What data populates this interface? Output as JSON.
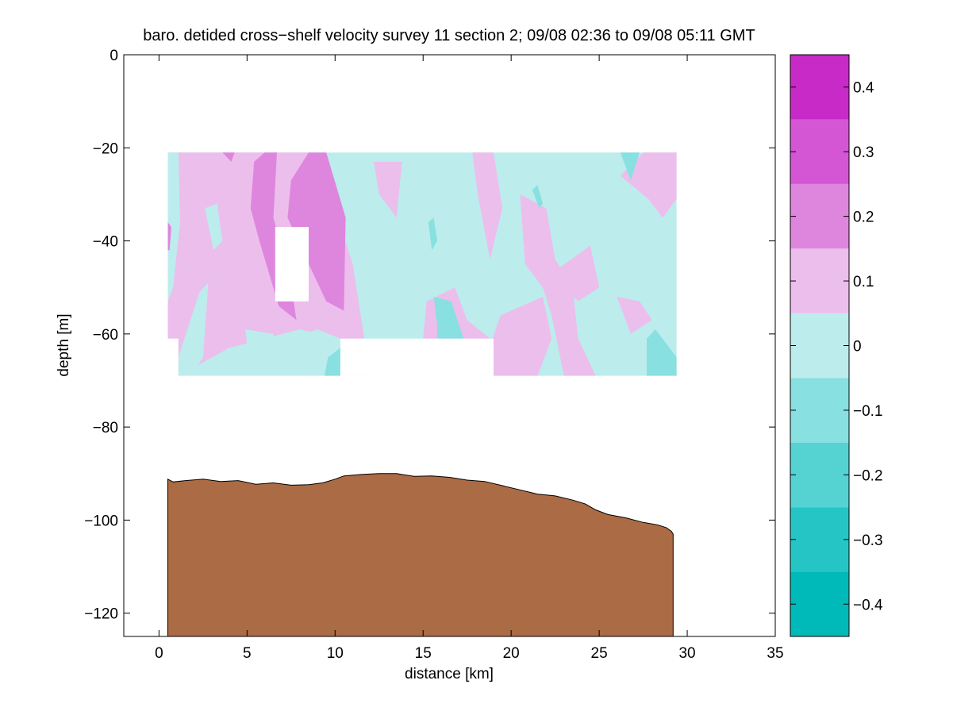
{
  "chart_data": {
    "type": "heatmap",
    "title": "baro. detided cross−shelf velocity survey 11 section 2; 09/08 02:36 to 09/08 05:11 GMT",
    "xlabel": "distance [km]",
    "ylabel": "depth [m]",
    "xlim": [
      -2,
      35
    ],
    "ylim": [
      -125,
      0
    ],
    "x_ticks": [
      0,
      5,
      10,
      15,
      20,
      25,
      30,
      35
    ],
    "x_tick_labels": [
      "0",
      "5",
      "10",
      "15",
      "20",
      "25",
      "30",
      "35"
    ],
    "y_ticks": [
      0,
      -20,
      -40,
      -60,
      -80,
      -100,
      -120
    ],
    "y_tick_labels": [
      "0",
      "−20",
      "−40",
      "−60",
      "−80",
      "−100",
      "−120"
    ],
    "grid": false,
    "colorbar": {
      "range": [
        -0.45,
        0.45
      ],
      "levels": [
        -0.45,
        -0.35,
        -0.25,
        -0.15,
        -0.05,
        0.05,
        0.15,
        0.25,
        0.35,
        0.45
      ],
      "colors": [
        "#00b9b9",
        "#26c5c5",
        "#55d3d3",
        "#88e0e0",
        "#bdeced",
        "#ecbeec",
        "#de86de",
        "#d456d4",
        "#c82ac8",
        "#bb00bb"
      ],
      "ticks": [
        0.4,
        0.3,
        0.2,
        0.1,
        0,
        -0.1,
        -0.2,
        -0.3,
        -0.4
      ],
      "tick_labels": [
        "0.4",
        "0.3",
        "0.2",
        "0.1",
        "0",
        "−0.1",
        "−0.2",
        "−0.3",
        "−0.4"
      ]
    },
    "data_region": {
      "x_range": [
        0.5,
        29.4
      ],
      "y_range": [
        -69,
        -21
      ],
      "gaps": [
        {
          "x": [
            6.6,
            8.5
          ],
          "y": [
            -53,
            -37
          ]
        },
        {
          "x": [
            10.3,
            19
          ],
          "y": [
            -69,
            -61
          ]
        },
        {
          "x": [
            0.5,
            1.1
          ],
          "y": [
            -69,
            -61
          ]
        }
      ]
    },
    "patches": [
      {
        "level": 0.1,
        "points": [
          [
            0.5,
            -21
          ],
          [
            9,
            -21
          ],
          [
            11,
            -45
          ],
          [
            12,
            -69
          ],
          [
            10.3,
            -69
          ],
          [
            10.3,
            -61
          ],
          [
            8,
            -59
          ],
          [
            4,
            -63
          ],
          [
            1.1,
            -69
          ],
          [
            1.1,
            -61
          ],
          [
            0.5,
            -61
          ]
        ]
      },
      {
        "level": 0.1,
        "points": [
          [
            15.2,
            -53
          ],
          [
            16.8,
            -50
          ],
          [
            17.5,
            -57
          ],
          [
            18.8,
            -61
          ],
          [
            16.5,
            -66
          ],
          [
            15,
            -61
          ]
        ]
      },
      {
        "level": 0.1,
        "points": [
          [
            18.2,
            -69
          ],
          [
            19.4,
            -56
          ],
          [
            21.8,
            -52
          ],
          [
            22.3,
            -61
          ],
          [
            21.5,
            -69
          ]
        ]
      },
      {
        "level": 0.1,
        "points": [
          [
            17.8,
            -21
          ],
          [
            19,
            -21
          ],
          [
            19.5,
            -33
          ],
          [
            18.8,
            -44
          ],
          [
            18.1,
            -30
          ]
        ]
      },
      {
        "level": 0.1,
        "points": [
          [
            20.5,
            -30
          ],
          [
            22,
            -33
          ],
          [
            22.5,
            -44
          ],
          [
            23.5,
            -50
          ],
          [
            23.8,
            -61
          ],
          [
            24.8,
            -69
          ],
          [
            23,
            -69
          ],
          [
            22.3,
            -56
          ],
          [
            21.8,
            -50
          ],
          [
            20.8,
            -45
          ]
        ]
      },
      {
        "level": 0.1,
        "points": [
          [
            22.3,
            -47
          ],
          [
            24.5,
            -41
          ],
          [
            25,
            -50
          ],
          [
            23.8,
            -53
          ]
        ]
      },
      {
        "level": 0.1,
        "points": [
          [
            26.2,
            -26
          ],
          [
            27.5,
            -21
          ],
          [
            29.4,
            -21
          ],
          [
            29.4,
            -31
          ],
          [
            28.6,
            -35
          ],
          [
            27.8,
            -31
          ]
        ]
      },
      {
        "level": 0.1,
        "points": [
          [
            26,
            -52
          ],
          [
            27.3,
            -53
          ],
          [
            28,
            -57
          ],
          [
            26.8,
            -60
          ]
        ]
      },
      {
        "level": 0.1,
        "points": [
          [
            12.2,
            -23
          ],
          [
            13.8,
            -23
          ],
          [
            13.5,
            -35
          ],
          [
            12.5,
            -30
          ]
        ]
      },
      {
        "level": 0,
        "points": [
          [
            0.5,
            -21
          ],
          [
            1.1,
            -21
          ],
          [
            1.2,
            -36
          ],
          [
            0.8,
            -50
          ],
          [
            0.5,
            -53
          ]
        ]
      },
      {
        "level": 0,
        "points": [
          [
            2.3,
            -51
          ],
          [
            2.8,
            -49
          ],
          [
            2.5,
            -65
          ],
          [
            1.8,
            -69
          ],
          [
            1.1,
            -69
          ],
          [
            1.1,
            -65
          ]
        ]
      },
      {
        "level": 0,
        "points": [
          [
            4.9,
            -59
          ],
          [
            6.5,
            -60
          ],
          [
            6.8,
            -67
          ],
          [
            5.8,
            -69
          ],
          [
            5.2,
            -69
          ]
        ]
      },
      {
        "level": 0,
        "points": [
          [
            7.5,
            -61
          ],
          [
            9,
            -59
          ],
          [
            10.3,
            -61
          ],
          [
            10.3,
            -69
          ],
          [
            7.9,
            -69
          ]
        ]
      },
      {
        "level": 0,
        "points": [
          [
            2.6,
            -33
          ],
          [
            3.3,
            -32
          ],
          [
            3.6,
            -40
          ],
          [
            3.1,
            -42
          ]
        ]
      },
      {
        "level": 0.2,
        "points": [
          [
            5.4,
            -23
          ],
          [
            6,
            -21
          ],
          [
            6.7,
            -21
          ],
          [
            6.5,
            -35
          ],
          [
            7.5,
            -49
          ],
          [
            7.8,
            -57
          ],
          [
            6.8,
            -54
          ],
          [
            5.7,
            -40
          ],
          [
            5.2,
            -33
          ]
        ]
      },
      {
        "level": 0.2,
        "points": [
          [
            7.5,
            -27
          ],
          [
            8.5,
            -21
          ],
          [
            9.5,
            -21
          ],
          [
            10.6,
            -35
          ],
          [
            10.5,
            -55
          ],
          [
            9.5,
            -53
          ],
          [
            8.5,
            -45
          ],
          [
            7.3,
            -35
          ]
        ]
      },
      {
        "level": 0.2,
        "points": [
          [
            3.6,
            -21
          ],
          [
            4.3,
            -21
          ],
          [
            4.1,
            -23
          ]
        ]
      },
      {
        "level": 0.2,
        "points": [
          [
            0.5,
            -36
          ],
          [
            0.7,
            -37
          ],
          [
            0.6,
            -42
          ],
          [
            0.5,
            -42
          ]
        ]
      },
      {
        "level": -0.1,
        "points": [
          [
            15.8,
            -58
          ],
          [
            15.6,
            -52
          ],
          [
            16.6,
            -53
          ],
          [
            17.3,
            -61
          ],
          [
            15.8,
            -61
          ]
        ]
      },
      {
        "level": -0.1,
        "points": [
          [
            15.3,
            -36
          ],
          [
            15.6,
            -35
          ],
          [
            15.8,
            -40
          ],
          [
            15.5,
            -42
          ]
        ]
      },
      {
        "level": -0.1,
        "points": [
          [
            21.2,
            -29
          ],
          [
            21.5,
            -28
          ],
          [
            21.8,
            -32
          ],
          [
            21.6,
            -33
          ]
        ]
      },
      {
        "level": -0.1,
        "points": [
          [
            26.2,
            -21
          ],
          [
            27.3,
            -21
          ],
          [
            26.8,
            -27
          ]
        ]
      },
      {
        "level": -0.1,
        "points": [
          [
            27.7,
            -61
          ],
          [
            28.2,
            -59
          ],
          [
            29.4,
            -65
          ],
          [
            29.4,
            -69
          ],
          [
            27.7,
            -69
          ]
        ]
      },
      {
        "level": -0.1,
        "points": [
          [
            9.4,
            -69
          ],
          [
            9.6,
            -65
          ],
          [
            10.3,
            -63
          ],
          [
            10.3,
            -69
          ]
        ]
      }
    ],
    "bathymetry": {
      "color": "#ab6b44",
      "x": [
        0.5,
        0.8,
        1.5,
        2.5,
        3.5,
        4.5,
        5.5,
        6.5,
        7.5,
        8.5,
        9.3,
        10.0,
        10.5,
        11.5,
        12.5,
        13.5,
        14.5,
        15.5,
        16.5,
        17.5,
        18.5,
        19.5,
        20.5,
        21.5,
        22.5,
        23.5,
        24.2,
        24.8,
        25.5,
        26.5,
        27.5,
        28.3,
        28.8,
        29.1,
        29.2
      ],
      "y": [
        -91.2,
        -91.8,
        -91.5,
        -91.2,
        -91.7,
        -91.5,
        -92.3,
        -92.0,
        -92.5,
        -92.4,
        -92.0,
        -91.2,
        -90.5,
        -90.2,
        -90.0,
        -90.0,
        -90.6,
        -90.5,
        -90.8,
        -91.4,
        -91.7,
        -92.6,
        -93.5,
        -94.4,
        -94.8,
        -95.7,
        -96.5,
        -97.8,
        -98.8,
        -99.5,
        -100.5,
        -101.0,
        -101.6,
        -102.4,
        -103.0
      ],
      "x_end": 29.2,
      "bottom": -125
    }
  }
}
